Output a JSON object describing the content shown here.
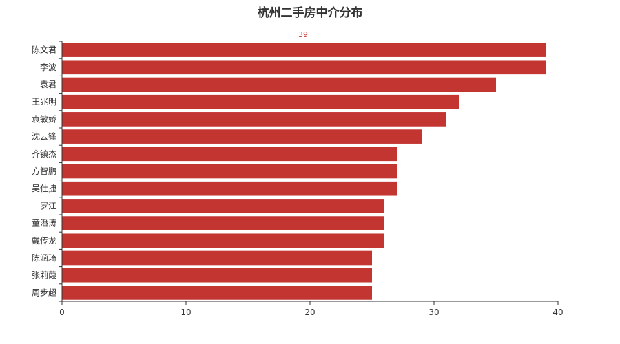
{
  "chart_data": {
    "type": "bar",
    "orientation": "horizontal",
    "title": "杭州二手房中介分布",
    "categories": [
      "陈文君",
      "李波",
      "袁君",
      "王兆明",
      "袁敏娇",
      "沈云锋",
      "齐镇杰",
      "方智鹏",
      "吴仕捷",
      "罗江",
      "童潘涛",
      "戴传龙",
      "陈涵琦",
      "张莉葭",
      "周步超"
    ],
    "values": [
      39,
      39,
      35,
      32,
      31,
      29,
      27,
      27,
      27,
      26,
      26,
      26,
      25,
      25,
      25
    ],
    "xlim": [
      0,
      40
    ],
    "xticks": [
      0,
      10,
      20,
      30,
      40
    ],
    "data_labels": [
      {
        "category": "陈文君",
        "text": "39"
      }
    ],
    "grid": false,
    "bar_color": "#c23531",
    "axis_color": "#333333"
  }
}
